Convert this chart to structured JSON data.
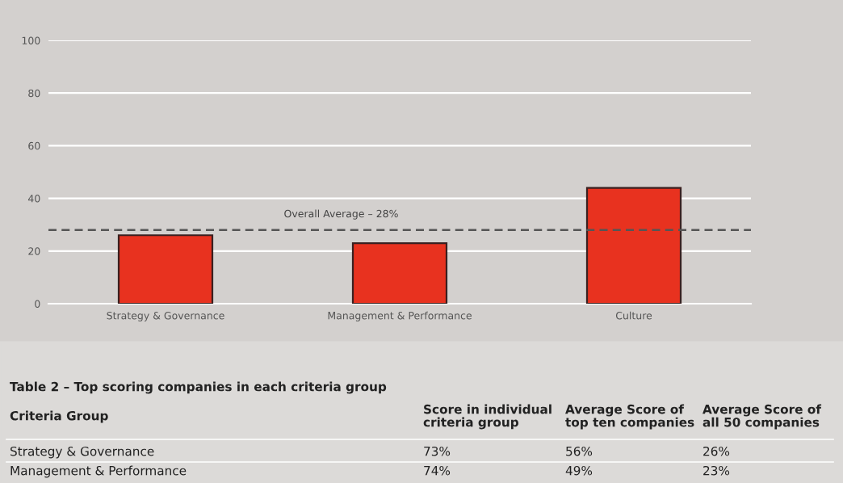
{
  "chart_data": {
    "type": "bar",
    "categories": [
      "Strategy & Governance",
      "Management & Performance",
      "Culture"
    ],
    "values": [
      26,
      23,
      44
    ],
    "color": "#e8321f",
    "ylim": [
      0,
      100
    ],
    "yticks": [
      0,
      20,
      40,
      60,
      80,
      100
    ],
    "grid": "y",
    "ref_lines": [
      {
        "axis": "y",
        "value": 28,
        "label": "Overall Average – 28%",
        "color": "#555555",
        "line_style": "dashed"
      }
    ],
    "annotations": [
      "Table 2 – Top scoring companies in each criteria group",
      "Criteria Group",
      "Score in individual\ncriteria group",
      "Average Score of\ntop ten companies",
      "Average Score of\nall 50 companies",
      "Strategy & Governance",
      "73%",
      "56%",
      "26%",
      "Management & Performance",
      "74%",
      "49%",
      "23%"
    ]
  }
}
